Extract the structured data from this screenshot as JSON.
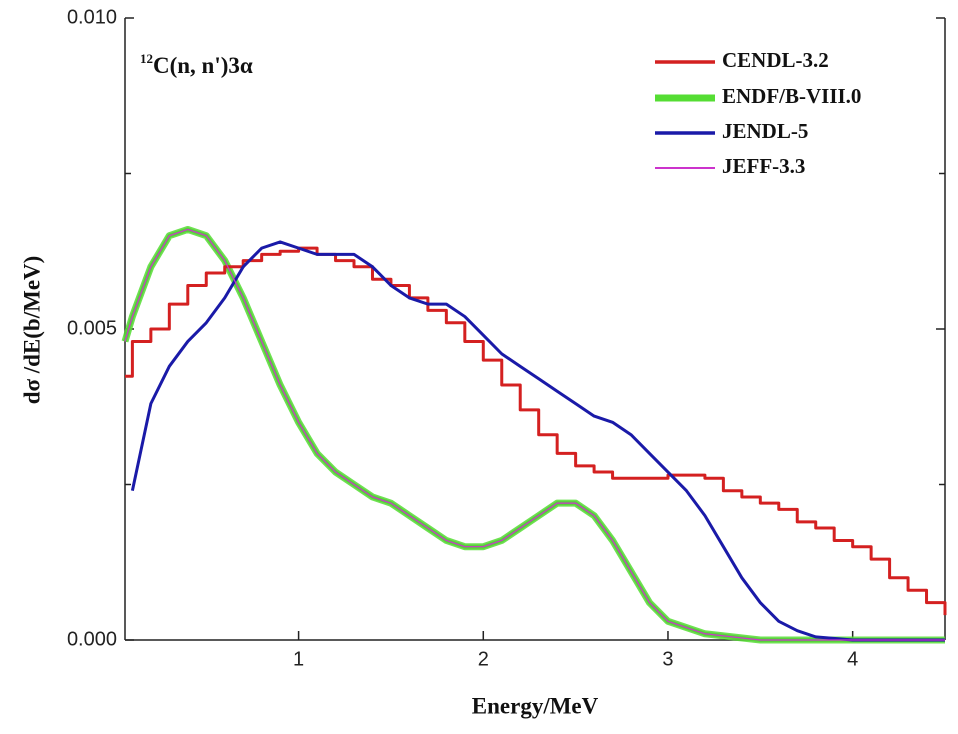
{
  "chart_data": {
    "type": "line",
    "annotation_sup": "12",
    "annotation": "C(n, n')3α",
    "xlabel": "Energy/MeV",
    "ylabel": "dσ  /dE(b/MeV)",
    "xlim": [
      0.06,
      4.5
    ],
    "ylim": [
      0,
      0.01
    ],
    "xticks": [
      1,
      2,
      3,
      4
    ],
    "yticks": [
      {
        "value": 0,
        "label": "0.000"
      },
      {
        "value": 0.005,
        "label": "0.005"
      },
      {
        "value": 0.01,
        "label": "0.010"
      }
    ],
    "yminor": [
      0.0025,
      0.0075
    ],
    "legend": "upper right",
    "series": [
      {
        "name": "CENDL-3.2",
        "color": "#d42020",
        "step": true,
        "x": [
          0.06,
          0.1,
          0.2,
          0.3,
          0.4,
          0.5,
          0.6,
          0.7,
          0.8,
          0.9,
          1.0,
          1.1,
          1.2,
          1.3,
          1.4,
          1.5,
          1.6,
          1.7,
          1.8,
          1.9,
          2.0,
          2.1,
          2.2,
          2.3,
          2.4,
          2.5,
          2.6,
          2.7,
          2.8,
          2.9,
          3.0,
          3.1,
          3.2,
          3.3,
          3.4,
          3.5,
          3.6,
          3.7,
          3.8,
          3.9,
          4.0,
          4.1,
          4.2,
          4.3,
          4.4,
          4.5
        ],
        "values": [
          0.00424,
          0.0048,
          0.005,
          0.0054,
          0.0057,
          0.0059,
          0.006,
          0.0061,
          0.0062,
          0.00625,
          0.0063,
          0.0062,
          0.0061,
          0.006,
          0.0058,
          0.0057,
          0.0055,
          0.0053,
          0.0051,
          0.0048,
          0.0045,
          0.0041,
          0.0037,
          0.0033,
          0.003,
          0.0028,
          0.0027,
          0.0026,
          0.0026,
          0.0026,
          0.00265,
          0.00265,
          0.0026,
          0.0024,
          0.0023,
          0.0022,
          0.0021,
          0.0019,
          0.0018,
          0.0016,
          0.0015,
          0.0013,
          0.001,
          0.0008,
          0.0006,
          0.0004
        ]
      },
      {
        "name": "ENDF/B-VIII.0",
        "color": "#55dd33",
        "x": [
          0.06,
          0.1,
          0.2,
          0.3,
          0.4,
          0.5,
          0.6,
          0.7,
          0.8,
          0.9,
          1.0,
          1.1,
          1.2,
          1.3,
          1.4,
          1.5,
          1.6,
          1.7,
          1.8,
          1.9,
          2.0,
          2.1,
          2.2,
          2.3,
          2.4,
          2.5,
          2.6,
          2.7,
          2.8,
          2.9,
          3.0,
          3.2,
          3.5,
          4.0,
          4.5
        ],
        "values": [
          0.0048,
          0.0052,
          0.006,
          0.0065,
          0.0066,
          0.0065,
          0.0061,
          0.0055,
          0.0048,
          0.0041,
          0.0035,
          0.003,
          0.0027,
          0.0025,
          0.0023,
          0.0022,
          0.002,
          0.0018,
          0.0016,
          0.0015,
          0.0015,
          0.0016,
          0.0018,
          0.002,
          0.0022,
          0.0022,
          0.002,
          0.0016,
          0.0011,
          0.0006,
          0.0003,
          0.0001,
          0,
          0,
          0
        ]
      },
      {
        "name": "JENDL-5",
        "color": "#1a1aa8",
        "x": [
          0.1,
          0.2,
          0.3,
          0.4,
          0.5,
          0.6,
          0.7,
          0.8,
          0.9,
          1.0,
          1.1,
          1.2,
          1.3,
          1.4,
          1.5,
          1.6,
          1.7,
          1.8,
          1.9,
          2.0,
          2.1,
          2.2,
          2.3,
          2.4,
          2.5,
          2.6,
          2.7,
          2.8,
          2.9,
          3.0,
          3.1,
          3.2,
          3.3,
          3.4,
          3.5,
          3.6,
          3.7,
          3.8,
          4.0,
          4.5
        ],
        "values": [
          0.0024,
          0.0038,
          0.0044,
          0.0048,
          0.0051,
          0.0055,
          0.006,
          0.0063,
          0.0064,
          0.0063,
          0.0062,
          0.0062,
          0.0062,
          0.006,
          0.0057,
          0.0055,
          0.0054,
          0.0054,
          0.0052,
          0.0049,
          0.0046,
          0.0044,
          0.0042,
          0.004,
          0.0038,
          0.0036,
          0.0035,
          0.0033,
          0.003,
          0.0027,
          0.0024,
          0.002,
          0.0015,
          0.001,
          0.0006,
          0.0003,
          0.00015,
          5e-05,
          0,
          0
        ]
      },
      {
        "name": "JEFF-3.3",
        "color": "#cc33cc",
        "x": [
          0.06,
          0.1,
          0.2,
          0.3,
          0.4,
          0.5,
          0.6,
          0.7,
          0.8,
          0.9,
          1.0,
          1.1,
          1.2,
          1.3,
          1.4,
          1.5,
          1.6,
          1.7,
          1.8,
          1.9,
          2.0,
          2.1,
          2.2,
          2.3,
          2.4,
          2.5,
          2.6,
          2.7,
          2.8,
          2.9,
          3.0,
          3.2,
          3.5,
          4.0,
          4.5
        ],
        "values": [
          0.0048,
          0.0052,
          0.006,
          0.0065,
          0.0066,
          0.0065,
          0.0061,
          0.0055,
          0.0048,
          0.0041,
          0.0035,
          0.003,
          0.0027,
          0.0025,
          0.0023,
          0.0022,
          0.002,
          0.0018,
          0.0016,
          0.0015,
          0.0015,
          0.0016,
          0.0018,
          0.002,
          0.0022,
          0.0022,
          0.002,
          0.0016,
          0.0011,
          0.0006,
          0.0003,
          0.0001,
          0,
          0,
          0
        ]
      }
    ]
  }
}
